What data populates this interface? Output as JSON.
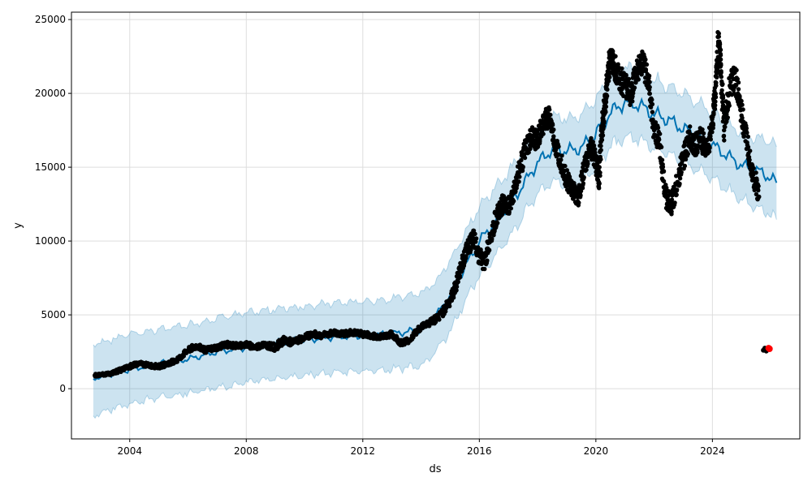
{
  "chart_data": {
    "type": "scatter",
    "xlabel": "ds",
    "ylabel": "y",
    "xlim": [
      2002.0,
      2027.0
    ],
    "ylim": [
      -3400,
      25500
    ],
    "grid": true,
    "x_ticks": [
      {
        "value": 2004,
        "label": "2004"
      },
      {
        "value": 2008,
        "label": "2008"
      },
      {
        "value": 2012,
        "label": "2012"
      },
      {
        "value": 2016,
        "label": "2016"
      },
      {
        "value": 2020,
        "label": "2020"
      },
      {
        "value": 2024,
        "label": "2024"
      }
    ],
    "y_ticks": [
      {
        "value": 0,
        "label": "0"
      },
      {
        "value": 5000,
        "label": "5000"
      },
      {
        "value": 10000,
        "label": "10000"
      },
      {
        "value": 15000,
        "label": "15000"
      },
      {
        "value": 20000,
        "label": "20000"
      },
      {
        "value": 25000,
        "label": "25000"
      }
    ],
    "colors": {
      "observed": "#000000",
      "forecast_line": "#0072B2",
      "uncertainty_band": "#0072B2",
      "highlight": "#ff0000",
      "grid": "#dddddd"
    },
    "forecast": {
      "x": [
        2002.75,
        2004.0,
        2005.0,
        2006.0,
        2007.0,
        2008.0,
        2009.0,
        2010.0,
        2011.0,
        2012.0,
        2013.0,
        2014.0,
        2014.5,
        2015.0,
        2015.5,
        2016.0,
        2016.5,
        2017.0,
        2017.5,
        2018.0,
        2018.5,
        2019.0,
        2019.5,
        2020.0,
        2020.5,
        2021.0,
        2021.5,
        2022.0,
        2022.5,
        2023.0,
        2023.5,
        2024.0,
        2024.5,
        2025.0,
        2025.5,
        2026.0,
        2026.2
      ],
      "yhat": [
        700,
        1300,
        1700,
        2000,
        2500,
        2800,
        3100,
        3300,
        3500,
        3600,
        3700,
        4000,
        4900,
        6300,
        8200,
        10000,
        11200,
        12300,
        13800,
        15300,
        16200,
        16100,
        16300,
        17300,
        18700,
        19400,
        19200,
        18600,
        18200,
        17600,
        17100,
        16500,
        15800,
        15100,
        14800,
        14300,
        13900
      ],
      "lower": [
        -1800,
        -1000,
        -600,
        -300,
        100,
        400,
        700,
        900,
        1100,
        1200,
        1300,
        1600,
        2500,
        3900,
        5900,
        7600,
        8900,
        10200,
        11700,
        13200,
        14000,
        13800,
        14000,
        15000,
        16400,
        17000,
        16900,
        16300,
        15900,
        15300,
        14800,
        14200,
        13500,
        12800,
        12300,
        11800,
        11400
      ],
      "upper": [
        3000,
        3700,
        4000,
        4300,
        4800,
        5100,
        5400,
        5600,
        5800,
        5900,
        6100,
        6500,
        7200,
        8700,
        10500,
        12300,
        13500,
        14700,
        16200,
        17700,
        18400,
        18300,
        18600,
        19600,
        21000,
        21700,
        21500,
        20900,
        20500,
        19900,
        19400,
        18800,
        18000,
        17300,
        17000,
        16700,
        16400
      ]
    },
    "observed": {
      "x": [
        2002.8,
        2003.0,
        2003.3,
        2003.6,
        2004.0,
        2004.3,
        2004.6,
        2005.0,
        2005.3,
        2005.6,
        2006.0,
        2006.3,
        2006.6,
        2007.0,
        2007.3,
        2007.6,
        2008.0,
        2008.3,
        2008.6,
        2009.0,
        2009.3,
        2009.6,
        2010.0,
        2010.3,
        2010.6,
        2011.0,
        2011.3,
        2011.6,
        2012.0,
        2012.3,
        2012.6,
        2013.0,
        2013.3,
        2013.6,
        2014.0,
        2014.3,
        2014.6,
        2015.0,
        2015.2,
        2015.4,
        2015.6,
        2015.8,
        2016.0,
        2016.2,
        2016.4,
        2016.6,
        2016.8,
        2017.0,
        2017.2,
        2017.4,
        2017.6,
        2017.8,
        2018.0,
        2018.2,
        2018.4,
        2018.6,
        2018.8,
        2019.0,
        2019.2,
        2019.4,
        2019.6,
        2019.8,
        2020.0,
        2020.1,
        2020.2,
        2020.3,
        2020.4,
        2020.5,
        2020.6,
        2020.8,
        2021.0,
        2021.2,
        2021.4,
        2021.6,
        2021.8,
        2022.0,
        2022.2,
        2022.4,
        2022.6,
        2022.8,
        2023.0,
        2023.2,
        2023.4,
        2023.6,
        2023.8,
        2024.0,
        2024.1,
        2024.2,
        2024.3,
        2024.4,
        2024.6,
        2024.8,
        2025.0,
        2025.2,
        2025.4,
        2025.6
      ],
      "y": [
        900,
        950,
        1000,
        1200,
        1500,
        1700,
        1600,
        1500,
        1700,
        1900,
        2600,
        2900,
        2600,
        2800,
        3000,
        2900,
        3000,
        2800,
        3000,
        2800,
        3300,
        3100,
        3500,
        3700,
        3600,
        3800,
        3700,
        3800,
        3700,
        3600,
        3500,
        3700,
        3100,
        3300,
        4200,
        4500,
        4800,
        6000,
        7000,
        8500,
        9500,
        10200,
        9000,
        8500,
        10500,
        11700,
        12500,
        12300,
        13500,
        15000,
        16300,
        17000,
        16800,
        18000,
        18500,
        16500,
        15500,
        14200,
        13500,
        13000,
        14800,
        16500,
        15500,
        14000,
        17500,
        19000,
        21000,
        22500,
        22000,
        21000,
        20500,
        20000,
        21500,
        22000,
        21000,
        17500,
        16500,
        13000,
        12500,
        14000,
        15500,
        17000,
        16500,
        17000,
        16000,
        18000,
        20000,
        23500,
        21500,
        17500,
        20500,
        21000,
        18500,
        16500,
        14500,
        13000
      ],
      "jitter": [
        200,
        150,
        200,
        250,
        300,
        300,
        300,
        300,
        300,
        350,
        400,
        400,
        400,
        400,
        400,
        400,
        400,
        400,
        400,
        500,
        500,
        500,
        400,
        400,
        400,
        400,
        400,
        400,
        400,
        400,
        400,
        400,
        400,
        400,
        400,
        500,
        600,
        800,
        900,
        1000,
        1100,
        1200,
        1200,
        1200,
        1300,
        1300,
        1300,
        1300,
        1400,
        1500,
        1500,
        1500,
        1500,
        1500,
        1500,
        1500,
        1500,
        1500,
        1300,
        1300,
        1500,
        1600,
        1700,
        1700,
        1800,
        1800,
        1800,
        1800,
        1800,
        1800,
        1800,
        1800,
        1800,
        1800,
        1800,
        1700,
        1600,
        1500,
        1500,
        1600,
        1700,
        1700,
        1600,
        1600,
        1600,
        1800,
        2000,
        2000,
        2000,
        1800,
        2000,
        2000,
        1800,
        1700,
        1600,
        1500
      ]
    },
    "recent_observed": {
      "x": [
        2025.75,
        2025.8,
        2025.85,
        2025.9
      ],
      "y": [
        2600,
        2750,
        2550,
        2650
      ]
    },
    "highlight_points": {
      "x": [
        2025.93,
        2025.96
      ],
      "y": [
        2750,
        2700
      ]
    }
  }
}
